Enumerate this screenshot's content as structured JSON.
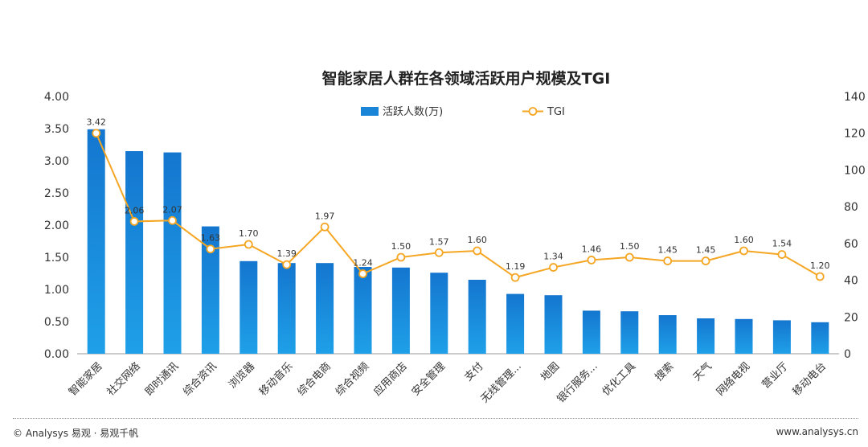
{
  "chart_data": {
    "type": "bar",
    "title": "智能家居人群在各领域活跃用户规模及TGI",
    "categories": [
      "智能家居",
      "社交网络",
      "即时通讯",
      "综合资讯",
      "浏览器",
      "移动音乐",
      "综合电商",
      "综合视频",
      "应用商店",
      "安全管理",
      "支付",
      "无线管理...",
      "地图",
      "银行服务...",
      "优化工具",
      "搜索",
      "天气",
      "网络电视",
      "营业厅",
      "移动电台"
    ],
    "series": [
      {
        "name": "活跃人数(万)",
        "type": "bar",
        "axis": "left",
        "color": "#1a84d6",
        "values": [
          3.49,
          3.15,
          3.13,
          1.98,
          1.44,
          1.41,
          1.41,
          1.35,
          1.34,
          1.26,
          1.15,
          0.93,
          0.91,
          0.67,
          0.66,
          0.6,
          0.55,
          0.54,
          0.52,
          0.49
        ]
      },
      {
        "name": "TGI",
        "type": "line",
        "axis": "right",
        "color": "#f5a623",
        "values": [
          120,
          72,
          72.5,
          57,
          59.5,
          48.5,
          69,
          43.5,
          52.5,
          55,
          56,
          41.5,
          47,
          51,
          52.5,
          50.5,
          50.5,
          56,
          54,
          42
        ],
        "labels": [
          "3.42",
          "2.06",
          "2.07",
          "1.63",
          "1.70",
          "1.39",
          "1.97",
          "1.24",
          "1.50",
          "1.57",
          "1.60",
          "1.19",
          "1.34",
          "1.46",
          "1.50",
          "1.45",
          "1.45",
          "1.60",
          "1.54",
          "1.20"
        ]
      }
    ],
    "y_left": {
      "ticks": [
        "0.00",
        "0.50",
        "1.00",
        "1.50",
        "2.00",
        "2.50",
        "3.00",
        "3.50",
        "4.00"
      ],
      "range": [
        0,
        4
      ]
    },
    "y_right": {
      "ticks": [
        "0",
        "20",
        "40",
        "60",
        "80",
        "100",
        "120",
        "140"
      ],
      "range": [
        0,
        140
      ]
    },
    "legend_position": "top-center",
    "grid": false
  },
  "footer": {
    "left": "© Analysys 易观 · 易观千帆",
    "right": "www.analysys.cn"
  }
}
